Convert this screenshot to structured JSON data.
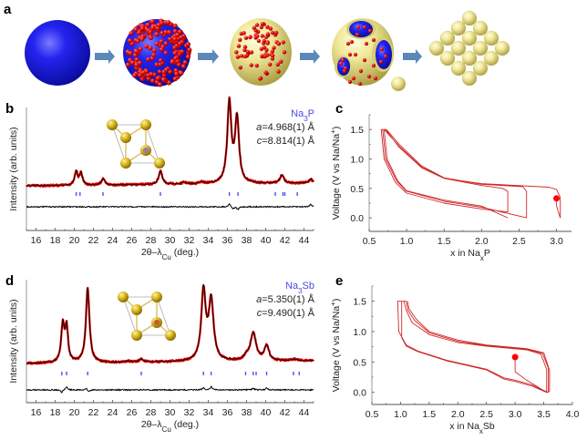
{
  "colors": {
    "blue_sphere": "#1a1ae0",
    "red_particle": "#e01010",
    "gold_sphere": "#e8e08a",
    "arrow": "#5b87b9",
    "xrd_obs": "#d40000",
    "xrd_calc": "#000000",
    "bragg_tick": "#5050f0",
    "curve": "#d02828",
    "marker": "#ff0000",
    "annot_blue": "#4a4ae8"
  },
  "panel_a": {
    "label": "a",
    "steps": [
      "blue-sphere",
      "sphere-coated-with-red-particles",
      "gold-shell-with-red-particles",
      "hollow-gold-shell-with-openings",
      "packed-gold-spheres"
    ],
    "arrows": 4
  },
  "chart_data": [
    {
      "id": "b",
      "type": "line",
      "label": "b",
      "title": "",
      "xlabel": "2θ–λCu (deg.)",
      "xlabel_main": "2θ–λ",
      "xlabel_sub": "Cu",
      "xlabel_tail": " (deg.)",
      "ylabel": "Intensity (arb. units)",
      "xlim": [
        15,
        45
      ],
      "xticks": [
        16,
        18,
        20,
        22,
        24,
        26,
        28,
        30,
        32,
        34,
        36,
        38,
        40,
        42,
        44
      ],
      "compound_main": "Na",
      "compound_sub": "3",
      "compound_tail": "P",
      "lattice_a": "=4.968(1) Å",
      "lattice_c": "=8.814(1) Å",
      "lattice_a_symbol": "a",
      "lattice_c_symbol": "c",
      "baseline": 0.0,
      "peaks": [
        {
          "x": 20.2,
          "h": 0.17,
          "w": 0.18
        },
        {
          "x": 20.7,
          "h": 0.15,
          "w": 0.18
        },
        {
          "x": 23.0,
          "h": 0.08,
          "w": 0.2
        },
        {
          "x": 29.0,
          "h": 0.17,
          "w": 0.22
        },
        {
          "x": 31.5,
          "h": 0.02,
          "w": 0.3
        },
        {
          "x": 33.3,
          "h": 0.02,
          "w": 0.3
        },
        {
          "x": 36.2,
          "h": 1.0,
          "w": 0.25
        },
        {
          "x": 37.0,
          "h": 0.8,
          "w": 0.25
        },
        {
          "x": 41.7,
          "h": 0.1,
          "w": 0.25
        },
        {
          "x": 44.7,
          "h": 0.05,
          "w": 0.2
        }
      ],
      "bragg_positions": [
        20.2,
        20.6,
        23.0,
        29.0,
        36.2,
        37.1,
        41.0,
        41.8,
        42.0,
        43.3
      ],
      "difference_features": [
        {
          "x": 36.2,
          "amp": 0.6
        },
        {
          "x": 36.6,
          "amp": -0.4
        },
        {
          "x": 37.1,
          "amp": -0.5
        },
        {
          "x": 44.7,
          "amp": 0.5
        }
      ]
    },
    {
      "id": "c",
      "type": "line",
      "label": "c",
      "xlabel": "x in NaxP",
      "xlabel_main": "x in Na",
      "xlabel_sub": "x",
      "xlabel_tail": "P",
      "ylabel": "Voltage (V vs Na/Na⁺)",
      "ylabel_main": "Voltage (V vs Na/Na",
      "ylabel_sup": "+",
      "ylabel_tail": ")",
      "xlim": [
        0.5,
        3.2
      ],
      "ylim": [
        -0.23,
        1.75
      ],
      "xticks": [
        "0.5",
        "1.0",
        "1.5",
        "2.0",
        "2.5",
        "3.0"
      ],
      "xtick_values": [
        0.5,
        1.0,
        1.5,
        2.0,
        2.5,
        3.0
      ],
      "yticks": [
        "0.0",
        "0.5",
        "1.0",
        "1.5"
      ],
      "ytick_values": [
        0.0,
        0.5,
        1.0,
        1.5
      ],
      "series": [
        {
          "name": "cycle-1",
          "points": [
            [
              3.0,
              0.33
            ],
            [
              3.0,
              0.2
            ],
            [
              3.05,
              0.0
            ],
            [
              3.05,
              0.35
            ],
            [
              3.0,
              0.48
            ],
            [
              2.9,
              0.52
            ],
            [
              2.0,
              0.58
            ],
            [
              1.5,
              0.67
            ],
            [
              1.2,
              0.85
            ],
            [
              0.9,
              1.2
            ],
            [
              0.72,
              1.5
            ],
            [
              0.66,
              1.5
            ],
            [
              0.7,
              1.0
            ],
            [
              0.85,
              0.6
            ],
            [
              1.0,
              0.42
            ],
            [
              1.5,
              0.25
            ],
            [
              2.0,
              0.15
            ],
            [
              2.35,
              0.1
            ],
            [
              2.35,
              0.45
            ],
            [
              2.28,
              0.5
            ],
            [
              2.0,
              0.55
            ],
            [
              1.5,
              0.67
            ],
            [
              1.2,
              0.86
            ],
            [
              0.9,
              1.22
            ],
            [
              0.7,
              1.5
            ],
            [
              0.68,
              1.5
            ],
            [
              0.72,
              1.0
            ],
            [
              0.87,
              0.62
            ],
            [
              1.0,
              0.45
            ],
            [
              1.5,
              0.28
            ],
            [
              2.0,
              0.18
            ],
            [
              2.6,
              0.0
            ],
            [
              2.6,
              0.45
            ],
            [
              2.55,
              0.53
            ],
            [
              2.0,
              0.57
            ],
            [
              1.5,
              0.68
            ],
            [
              1.2,
              0.88
            ],
            [
              0.9,
              1.25
            ],
            [
              0.73,
              1.5
            ],
            [
              0.7,
              1.5
            ],
            [
              0.74,
              1.0
            ],
            [
              0.88,
              0.63
            ],
            [
              1.0,
              0.46
            ],
            [
              1.5,
              0.3
            ],
            [
              2.0,
              0.2
            ],
            [
              2.35,
              0.0
            ]
          ]
        }
      ],
      "marker": {
        "x": 3.0,
        "y": 0.33
      }
    },
    {
      "id": "d",
      "type": "line",
      "label": "d",
      "xlabel": "2θ–λCu (deg.)",
      "xlabel_main": "2θ–λ",
      "xlabel_sub": "Cu",
      "xlabel_tail": " (deg.)",
      "ylabel": "Intensity (arb. units)",
      "xlim": [
        15,
        45
      ],
      "xticks": [
        16,
        18,
        20,
        22,
        24,
        26,
        28,
        30,
        32,
        34,
        36,
        38,
        40,
        42,
        44
      ],
      "compound_main": "Na",
      "compound_sub": "3",
      "compound_tail": "Sb",
      "lattice_a": "=5.350(1) Å",
      "lattice_c": "=9.490(1) Å",
      "lattice_a_symbol": "a",
      "lattice_c_symbol": "c",
      "baseline": 0.0,
      "peaks": [
        {
          "x": 18.8,
          "h": 0.5,
          "w": 0.2
        },
        {
          "x": 19.2,
          "h": 0.45,
          "w": 0.18
        },
        {
          "x": 21.4,
          "h": 1.0,
          "w": 0.22
        },
        {
          "x": 25.6,
          "h": 0.02,
          "w": 0.2
        },
        {
          "x": 27.0,
          "h": 0.04,
          "w": 0.25
        },
        {
          "x": 33.5,
          "h": 0.93,
          "w": 0.28
        },
        {
          "x": 34.3,
          "h": 0.8,
          "w": 0.3
        },
        {
          "x": 38.0,
          "h": 0.05,
          "w": 0.3
        },
        {
          "x": 38.7,
          "h": 0.37,
          "w": 0.35
        },
        {
          "x": 40.1,
          "h": 0.2,
          "w": 0.28
        },
        {
          "x": 43.0,
          "h": 0.02,
          "w": 0.3
        }
      ],
      "bragg_positions": [
        18.7,
        19.2,
        21.4,
        27.0,
        33.5,
        34.3,
        37.9,
        38.7,
        39.0,
        40.1,
        42.9,
        43.5
      ],
      "difference_features": [
        {
          "x": 18.7,
          "amp": -0.5
        },
        {
          "x": 19.2,
          "amp": 0.6
        },
        {
          "x": 21.3,
          "amp": 0.3
        },
        {
          "x": 21.5,
          "amp": -0.4
        },
        {
          "x": 33.5,
          "amp": 0.4
        },
        {
          "x": 34.3,
          "amp": 0.6
        },
        {
          "x": 38.7,
          "amp": 0.3
        },
        {
          "x": 40.1,
          "amp": 0.4
        }
      ]
    },
    {
      "id": "e",
      "type": "line",
      "label": "e",
      "xlabel": "x in NaxSb",
      "xlabel_main": "x in Na",
      "xlabel_sub": "x",
      "xlabel_tail": "Sb",
      "ylabel": "Voltage (V vs Na/Na⁺)",
      "ylabel_main": "Voltage (V vs Na/Na",
      "ylabel_sup": "+",
      "ylabel_tail": ")",
      "xlim": [
        0.5,
        4.0
      ],
      "ylim": [
        -0.2,
        1.75
      ],
      "xticks": [
        "0.5",
        "1.0",
        "1.5",
        "2.0",
        "2.5",
        "3.0",
        "3.5",
        "4.0"
      ],
      "xtick_values": [
        0.5,
        1.0,
        1.5,
        2.0,
        2.5,
        3.0,
        3.5,
        4.0
      ],
      "yticks": [
        "0.0",
        "0.5",
        "1.0",
        "1.5"
      ],
      "ytick_values": [
        0.0,
        0.5,
        1.0,
        1.5
      ],
      "series": [
        {
          "name": "cycles",
          "points": [
            [
              3.0,
              0.58
            ],
            [
              3.0,
              0.34
            ],
            [
              3.2,
              0.2
            ],
            [
              3.5,
              0.03
            ],
            [
              3.55,
              0.0
            ],
            [
              3.55,
              0.38
            ],
            [
              3.45,
              0.63
            ],
            [
              3.2,
              0.7
            ],
            [
              2.5,
              0.76
            ],
            [
              2.0,
              0.82
            ],
            [
              1.5,
              0.95
            ],
            [
              1.2,
              1.15
            ],
            [
              1.1,
              1.35
            ],
            [
              1.06,
              1.5
            ],
            [
              1.02,
              1.5
            ],
            [
              1.02,
              0.9
            ],
            [
              1.1,
              0.76
            ],
            [
              1.3,
              0.67
            ],
            [
              1.8,
              0.52
            ],
            [
              2.5,
              0.37
            ],
            [
              2.8,
              0.22
            ],
            [
              3.0,
              0.18
            ],
            [
              3.3,
              0.1
            ],
            [
              3.55,
              0.0
            ],
            [
              3.58,
              0.0
            ],
            [
              3.58,
              0.4
            ],
            [
              3.48,
              0.64
            ],
            [
              3.2,
              0.71
            ],
            [
              2.5,
              0.77
            ],
            [
              2.0,
              0.84
            ],
            [
              1.5,
              0.98
            ],
            [
              1.25,
              1.18
            ],
            [
              1.13,
              1.35
            ],
            [
              1.1,
              1.5
            ],
            [
              0.95,
              1.5
            ],
            [
              0.97,
              1.0
            ],
            [
              1.1,
              0.78
            ],
            [
              1.3,
              0.68
            ],
            [
              1.8,
              0.53
            ],
            [
              2.5,
              0.38
            ],
            [
              2.8,
              0.24
            ],
            [
              3.0,
              0.2
            ],
            [
              3.3,
              0.12
            ],
            [
              3.57,
              0.0
            ],
            [
              3.6,
              0.02
            ],
            [
              3.6,
              0.36
            ],
            [
              3.5,
              0.65
            ],
            [
              3.2,
              0.72
            ],
            [
              2.5,
              0.78
            ],
            [
              2.0,
              0.86
            ],
            [
              1.5,
              1.0
            ],
            [
              1.28,
              1.2
            ],
            [
              1.15,
              1.37
            ],
            [
              1.12,
              1.5
            ]
          ]
        }
      ],
      "marker": {
        "x": 3.0,
        "y": 0.58
      }
    }
  ]
}
